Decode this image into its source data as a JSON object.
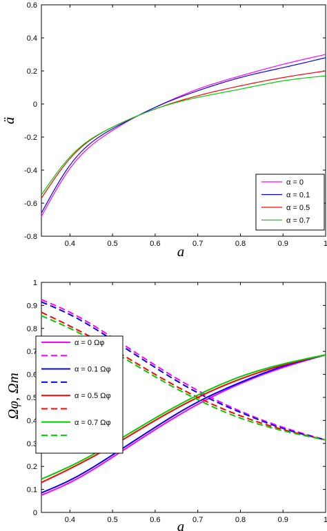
{
  "chart_data": [
    {
      "type": "line",
      "xlabel": "a",
      "ylabel": "ä",
      "xlim": [
        0.333,
        1.0
      ],
      "ylim": [
        -0.8,
        0.6
      ],
      "xticks": [
        "0.4",
        "0.5",
        "0.6",
        "0.7",
        "0.8",
        "0.9",
        "1"
      ],
      "xtick_values": [
        0.4,
        0.5,
        0.6,
        0.7,
        0.8,
        0.9,
        1.0
      ],
      "yticks": [
        "-0.8",
        "-0.6",
        "-0.4",
        "-0.2",
        "0",
        "0.2",
        "0.4",
        "0.6"
      ],
      "ytick_values": [
        -0.8,
        -0.6,
        -0.4,
        -0.2,
        0,
        0.2,
        0.4,
        0.6
      ],
      "grid": false,
      "legend_position": "bottom-right",
      "x": [
        0.333,
        0.4,
        0.5,
        0.56,
        0.6,
        0.7,
        0.8,
        0.9,
        1.0
      ],
      "series": [
        {
          "name": "α = 0",
          "color": "#ff00ff",
          "values": [
            -0.68,
            -0.39,
            -0.16,
            -0.07,
            -0.02,
            0.09,
            0.17,
            0.24,
            0.3
          ]
        },
        {
          "name": "α = 0.1",
          "color": "#0000ff",
          "values": [
            -0.66,
            -0.37,
            -0.15,
            -0.07,
            -0.02,
            0.08,
            0.16,
            0.22,
            0.28
          ]
        },
        {
          "name": "α = 0.5",
          "color": "#ff0000",
          "values": [
            -0.57,
            -0.33,
            -0.14,
            -0.07,
            -0.03,
            0.05,
            0.11,
            0.16,
            0.2
          ]
        },
        {
          "name": "α = 0.7",
          "color": "#00cc00",
          "values": [
            -0.55,
            -0.32,
            -0.14,
            -0.07,
            -0.03,
            0.04,
            0.09,
            0.14,
            0.17
          ]
        }
      ]
    },
    {
      "type": "line",
      "xlabel": "a",
      "ylabel": "Ωφ, Ωm",
      "xlim": [
        0.333,
        1.0
      ],
      "ylim": [
        0,
        1
      ],
      "xticks": [
        "0.4",
        "0.5",
        "0.6",
        "0.7",
        "0.8",
        "0.9",
        "1"
      ],
      "xtick_values": [
        0.4,
        0.5,
        0.6,
        0.7,
        0.8,
        0.9,
        1.0
      ],
      "yticks": [
        "0",
        "0.1",
        "0.2",
        "0.3",
        "0.4",
        "0.5",
        "0.6",
        "0.7",
        "0.8",
        "0.9",
        "1"
      ],
      "ytick_values": [
        0,
        0.1,
        0.2,
        0.3,
        0.4,
        0.5,
        0.6,
        0.7,
        0.8,
        0.9,
        1.0
      ],
      "grid": false,
      "legend_position": "top-left",
      "x": [
        0.333,
        0.4,
        0.5,
        0.6,
        0.7,
        0.8,
        0.9,
        1.0
      ],
      "series": [
        {
          "name": "α = 0   Ωφ",
          "color": "#ff00ff",
          "dash": "solid",
          "values": [
            0.075,
            0.13,
            0.24,
            0.36,
            0.47,
            0.56,
            0.63,
            0.685
          ]
        },
        {
          "name": "",
          "color": "#ff00ff",
          "dash": "dashed",
          "values": [
            0.925,
            0.87,
            0.76,
            0.64,
            0.53,
            0.44,
            0.37,
            0.315
          ]
        },
        {
          "name": "α = 0.1 Ωφ",
          "color": "#0000ff",
          "dash": "solid",
          "values": [
            0.085,
            0.14,
            0.25,
            0.37,
            0.48,
            0.565,
            0.635,
            0.685
          ]
        },
        {
          "name": "",
          "color": "#0000ff",
          "dash": "dashed",
          "values": [
            0.915,
            0.86,
            0.75,
            0.63,
            0.52,
            0.435,
            0.365,
            0.315
          ]
        },
        {
          "name": "α = 0.5 Ωφ",
          "color": "#ff0000",
          "dash": "solid",
          "values": [
            0.13,
            0.19,
            0.29,
            0.4,
            0.5,
            0.58,
            0.64,
            0.685
          ]
        },
        {
          "name": "",
          "color": "#ff0000",
          "dash": "dashed",
          "values": [
            0.87,
            0.81,
            0.71,
            0.6,
            0.5,
            0.42,
            0.36,
            0.315
          ]
        },
        {
          "name": "α = 0.7 Ωφ",
          "color": "#00cc00",
          "dash": "solid",
          "values": [
            0.145,
            0.2,
            0.3,
            0.41,
            0.51,
            0.59,
            0.645,
            0.685
          ]
        },
        {
          "name": "",
          "color": "#00cc00",
          "dash": "dashed",
          "values": [
            0.855,
            0.8,
            0.7,
            0.59,
            0.49,
            0.41,
            0.355,
            0.315
          ]
        }
      ]
    }
  ]
}
